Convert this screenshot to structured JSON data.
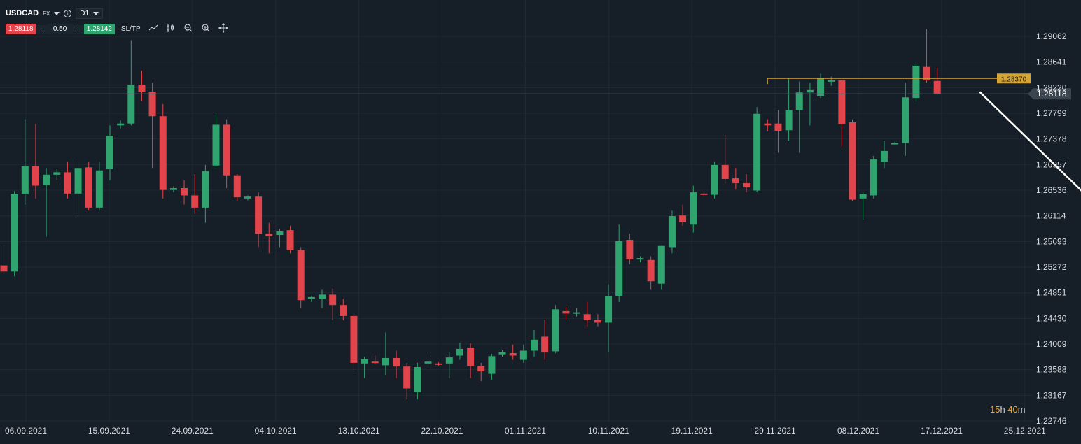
{
  "toolbar": {
    "symbol": "USDCAD",
    "market": "FX",
    "info_icon": "info-icon",
    "timeframe": "D1",
    "bid": "1.28118",
    "minus": "−",
    "lot": "0.50",
    "plus": "+",
    "ask": "1.28142",
    "sltp": "SL/TP",
    "tools": [
      "line-chart-icon",
      "candles-icon",
      "zoom-out-icon",
      "zoom-in-icon",
      "crosshair-icon"
    ]
  },
  "timer": {
    "hours": "15",
    "h": "h",
    "minutes": "40",
    "m": "m"
  },
  "colors": {
    "bg": "#161f27",
    "up": "#2fa46e",
    "down": "#e2444c",
    "grid": "#1f2a33",
    "level": "#d6a431",
    "arrow": "#ffffff"
  },
  "chart_data": {
    "type": "candlestick",
    "symbol": "USDCAD",
    "timeframe": "D1",
    "ylim": [
      1.2271,
      1.2935
    ],
    "y_ticks": [
      "1.29062",
      "1.28641",
      "1.28220",
      "1.27799",
      "1.27378",
      "1.26957",
      "1.26536",
      "1.26114",
      "1.25693",
      "1.25272",
      "1.24851",
      "1.24430",
      "1.24009",
      "1.23588",
      "1.23167",
      "1.22746"
    ],
    "x_tick_labels": [
      "06.09.2021",
      "15.09.2021",
      "24.09.2021",
      "04.10.2021",
      "13.10.2021",
      "22.10.2021",
      "01.11.2021",
      "10.11.2021",
      "19.11.2021",
      "29.11.2021",
      "08.12.2021",
      "17.12.2021",
      "25.12.2021"
    ],
    "current_price": "1.28118",
    "level": {
      "label": "1.28370",
      "value": 1.2837
    },
    "projection": {
      "from": [
        92,
        1.2815
      ],
      "to": [
        103,
        1.2629
      ]
    },
    "candles": [
      [
        1.253,
        1.2562,
        1.2518,
        1.252
      ],
      [
        1.252,
        1.2652,
        1.2512,
        1.2647
      ],
      [
        1.2647,
        1.277,
        1.263,
        1.2693
      ],
      [
        1.2693,
        1.2762,
        1.264,
        1.2661
      ],
      [
        1.2662,
        1.269,
        1.2577,
        1.2679
      ],
      [
        1.2679,
        1.2689,
        1.267,
        1.2683
      ],
      [
        1.2683,
        1.27,
        1.264,
        1.2648
      ],
      [
        1.2648,
        1.27,
        1.261,
        1.269
      ],
      [
        1.2691,
        1.27,
        1.262,
        1.2625
      ],
      [
        1.2625,
        1.27,
        1.262,
        1.2686
      ],
      [
        1.2688,
        1.276,
        1.267,
        1.2743
      ],
      [
        1.276,
        1.2768,
        1.2755,
        1.2763
      ],
      [
        1.2763,
        1.29,
        1.276,
        1.2827
      ],
      [
        1.2827,
        1.285,
        1.28,
        1.2815
      ],
      [
        1.2815,
        1.283,
        1.269,
        1.2775
      ],
      [
        1.2775,
        1.2795,
        1.264,
        1.2654
      ],
      [
        1.2654,
        1.266,
        1.265,
        1.2657
      ],
      [
        1.2657,
        1.267,
        1.263,
        1.2645
      ],
      [
        1.2645,
        1.268,
        1.2615,
        1.2625
      ],
      [
        1.2625,
        1.2695,
        1.26,
        1.2685
      ],
      [
        1.2694,
        1.2777,
        1.269,
        1.2761
      ],
      [
        1.2761,
        1.277,
        1.2657,
        1.2678
      ],
      [
        1.2678,
        1.268,
        1.2636,
        1.2642
      ],
      [
        1.264,
        1.2645,
        1.2637,
        1.2643
      ],
      [
        1.2643,
        1.265,
        1.256,
        1.2582
      ],
      [
        1.2582,
        1.26,
        1.255,
        1.2578
      ],
      [
        1.258,
        1.259,
        1.256,
        1.2586
      ],
      [
        1.2588,
        1.2595,
        1.255,
        1.2555
      ],
      [
        1.2555,
        1.256,
        1.246,
        1.2473
      ],
      [
        1.2475,
        1.248,
        1.247,
        1.2478
      ],
      [
        1.2475,
        1.249,
        1.246,
        1.2482
      ],
      [
        1.2482,
        1.2492,
        1.244,
        1.2465
      ],
      [
        1.2465,
        1.2475,
        1.244,
        1.2447
      ],
      [
        1.2447,
        1.245,
        1.2355,
        1.237
      ],
      [
        1.2369,
        1.238,
        1.2345,
        1.2376
      ],
      [
        1.2372,
        1.2382,
        1.2368,
        1.237
      ],
      [
        1.2366,
        1.242,
        1.235,
        1.2378
      ],
      [
        1.2378,
        1.239,
        1.2345,
        1.2364
      ],
      [
        1.2364,
        1.237,
        1.231,
        1.2328
      ],
      [
        1.2322,
        1.237,
        1.231,
        1.2363
      ],
      [
        1.2369,
        1.238,
        1.236,
        1.2372
      ],
      [
        1.2369,
        1.2371,
        1.2365,
        1.2367
      ],
      [
        1.2369,
        1.2387,
        1.2345,
        1.2379
      ],
      [
        1.2382,
        1.2403,
        1.2375,
        1.2393
      ],
      [
        1.2395,
        1.2402,
        1.2345,
        1.2365
      ],
      [
        1.2365,
        1.237,
        1.234,
        1.2356
      ],
      [
        1.2352,
        1.2385,
        1.2342,
        1.2381
      ],
      [
        1.2384,
        1.2391,
        1.238,
        1.2388
      ],
      [
        1.2386,
        1.24,
        1.2375,
        1.2382
      ],
      [
        1.2375,
        1.24,
        1.237,
        1.239
      ],
      [
        1.239,
        1.2424,
        1.238,
        1.2408
      ],
      [
        1.2413,
        1.2441,
        1.2375,
        1.2387
      ],
      [
        1.2389,
        1.2465,
        1.2386,
        1.2458
      ],
      [
        1.2455,
        1.2462,
        1.244,
        1.2451
      ],
      [
        1.2452,
        1.246,
        1.2446,
        1.2453
      ],
      [
        1.245,
        1.247,
        1.243,
        1.244
      ],
      [
        1.244,
        1.245,
        1.243,
        1.2436
      ],
      [
        1.2436,
        1.2499,
        1.2387,
        1.248
      ],
      [
        1.248,
        1.2597,
        1.247,
        1.257
      ],
      [
        1.2572,
        1.2582,
        1.2532,
        1.254
      ],
      [
        1.254,
        1.2545,
        1.2535,
        1.2542
      ],
      [
        1.2539,
        1.2545,
        1.249,
        1.2504
      ],
      [
        1.25,
        1.2562,
        1.249,
        1.2562
      ],
      [
        1.256,
        1.262,
        1.255,
        1.2611
      ],
      [
        1.2612,
        1.263,
        1.2595,
        1.2601
      ],
      [
        1.2597,
        1.2661,
        1.2584,
        1.265
      ],
      [
        1.2648,
        1.265,
        1.2644,
        1.2646
      ],
      [
        1.2646,
        1.27,
        1.264,
        1.2695
      ],
      [
        1.2695,
        1.2744,
        1.2665,
        1.2672
      ],
      [
        1.2673,
        1.269,
        1.2655,
        1.2665
      ],
      [
        1.2665,
        1.268,
        1.265,
        1.2658
      ],
      [
        1.2653,
        1.279,
        1.265,
        1.2779
      ],
      [
        1.2763,
        1.277,
        1.275,
        1.276
      ],
      [
        1.2763,
        1.2785,
        1.2715,
        1.2751
      ],
      [
        1.2752,
        1.2837,
        1.2735,
        1.2785
      ],
      [
        1.2785,
        1.2832,
        1.2715,
        1.2814
      ],
      [
        1.2814,
        1.283,
        1.276,
        1.2818
      ],
      [
        1.2808,
        1.2845,
        1.2805,
        1.2837
      ],
      [
        1.2832,
        1.284,
        1.2825,
        1.2834
      ],
      [
        1.2834,
        1.2835,
        1.2725,
        1.2762
      ],
      [
        1.2765,
        1.277,
        1.2635,
        1.2638
      ],
      [
        1.264,
        1.265,
        1.2605,
        1.2647
      ],
      [
        1.2645,
        1.271,
        1.264,
        1.2704
      ],
      [
        1.27,
        1.2735,
        1.269,
        1.2718
      ],
      [
        1.273,
        1.2733,
        1.2727,
        1.2731
      ],
      [
        1.2731,
        1.283,
        1.271,
        1.2806
      ],
      [
        1.2805,
        1.286,
        1.28,
        1.2858
      ],
      [
        1.2856,
        1.2918,
        1.283,
        1.2834
      ],
      [
        1.2833,
        1.2855,
        1.281,
        1.2812
      ]
    ]
  }
}
